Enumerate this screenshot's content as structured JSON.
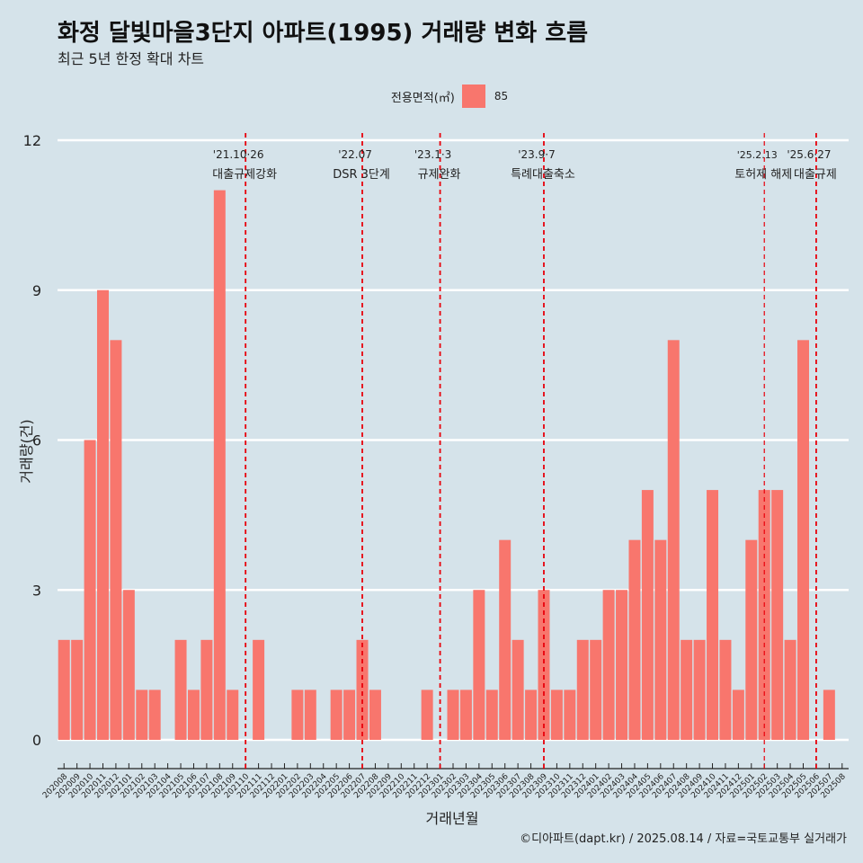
{
  "title": "화정 달빛마을3단지 아파트(1995) 거래량 변화 흐름",
  "subtitle": "최근 5년 한정 확대 차트",
  "legend": {
    "title": "전용면적(㎡)",
    "item": "85"
  },
  "caption": "©디아파트(dapt.kr) / 2025.08.14 / 자료=국토교통부 실거래가",
  "chart_data": {
    "type": "bar",
    "xlabel": "거래년월",
    "ylabel": "거래량(건)",
    "ylim": [
      -0.45,
      12
    ],
    "yticks": [
      0,
      3,
      6,
      9,
      12
    ],
    "grid": true,
    "legend_position": "top",
    "bar_color": "#f8766d",
    "background": "#d5e3ea",
    "categories": [
      "202008",
      "202009",
      "202010",
      "202011",
      "202012",
      "202101",
      "202102",
      "202103",
      "202104",
      "202105",
      "202106",
      "202107",
      "202108",
      "202109",
      "202110",
      "202111",
      "202112",
      "202201",
      "202202",
      "202203",
      "202204",
      "202205",
      "202206",
      "202207",
      "202208",
      "202209",
      "202210",
      "202211",
      "202212",
      "202301",
      "202302",
      "202303",
      "202304",
      "202305",
      "202306",
      "202307",
      "202308",
      "202309",
      "202310",
      "202311",
      "202312",
      "202401",
      "202402",
      "202403",
      "202404",
      "202405",
      "202406",
      "202407",
      "202408",
      "202409",
      "202410",
      "202411",
      "202412",
      "202501",
      "202502",
      "202503",
      "202504",
      "202505",
      "202506",
      "202507",
      "202508"
    ],
    "series": [
      {
        "name": "85",
        "values": [
          2,
          2,
          6,
          9,
          8,
          3,
          1,
          1,
          0,
          2,
          1,
          2,
          11,
          1,
          0,
          2,
          0,
          0,
          1,
          1,
          0,
          1,
          1,
          2,
          1,
          0,
          0,
          0,
          1,
          0,
          1,
          1,
          3,
          1,
          4,
          2,
          1,
          3,
          1,
          1,
          2,
          2,
          3,
          3,
          4,
          5,
          4,
          8,
          2,
          2,
          5,
          2,
          1,
          4,
          5,
          5,
          2,
          8,
          0,
          1,
          0
        ]
      }
    ],
    "annotations": [
      {
        "date": "'21.10·26",
        "label": "대출규제강화",
        "category": "202110"
      },
      {
        "date": "'22.07",
        "label": "DSR 3단계",
        "category": "202207"
      },
      {
        "date": "'23.1·3",
        "label": "규제완화",
        "category": "202301"
      },
      {
        "date": "'23.9·7",
        "label": "특례대출축소",
        "category": "202309"
      },
      {
        "date": "'25.2.13",
        "label": "토허제 해제",
        "category": "202502"
      },
      {
        "date": "'25.6·27",
        "label": "대출규제",
        "category": "202506"
      }
    ]
  }
}
